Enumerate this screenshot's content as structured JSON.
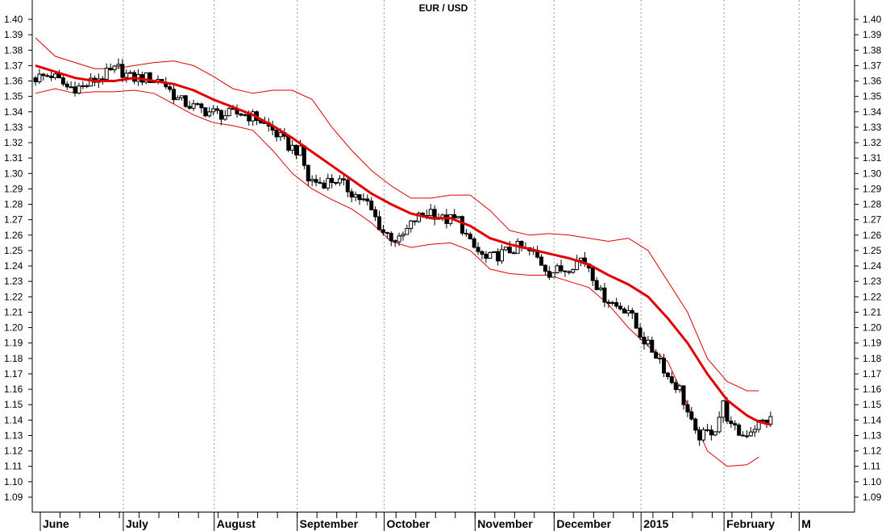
{
  "chart_data": {
    "type": "candlestick",
    "title": "EUR / USD",
    "ylim": [
      1.08,
      1.41
    ],
    "y_ticks": [
      "1.09",
      "1.10",
      "1.11",
      "1.12",
      "1.13",
      "1.14",
      "1.15",
      "1.16",
      "1.17",
      "1.18",
      "1.19",
      "1.20",
      "1.21",
      "1.22",
      "1.23",
      "1.24",
      "1.25",
      "1.26",
      "1.27",
      "1.28",
      "1.29",
      "1.30",
      "1.31",
      "1.32",
      "1.33",
      "1.34",
      "1.35",
      "1.36",
      "1.37",
      "1.38",
      "1.39",
      "1.40"
    ],
    "x_labels": [
      {
        "label": "June",
        "t": 0
      },
      {
        "label": "July",
        "t": 21
      },
      {
        "label": "August",
        "t": 44
      },
      {
        "label": "September",
        "t": 65
      },
      {
        "label": "October",
        "t": 87
      },
      {
        "label": "November",
        "t": 110
      },
      {
        "label": "December",
        "t": 130
      },
      {
        "label": "2015",
        "t": 152
      },
      {
        "label": "February",
        "t": 173
      },
      {
        "label": "M",
        "t": 192
      }
    ],
    "x_range": [
      0,
      195
    ],
    "grid": "vertical dotted at month starts",
    "legend": "none",
    "colors": {
      "moving_average": "#e00000",
      "bands": "#e00000",
      "candle": "#000000",
      "up_body": "#ffffff",
      "down_body": "#000000"
    },
    "series": [
      {
        "type": "candles",
        "close_anchors": [
          [
            0,
            1.362
          ],
          [
            4,
            1.364
          ],
          [
            8,
            1.356
          ],
          [
            12,
            1.356
          ],
          [
            16,
            1.362
          ],
          [
            21,
            1.368
          ],
          [
            24,
            1.362
          ],
          [
            28,
            1.362
          ],
          [
            32,
            1.36
          ],
          [
            36,
            1.348
          ],
          [
            40,
            1.343
          ],
          [
            44,
            1.34
          ],
          [
            48,
            1.338
          ],
          [
            52,
            1.339
          ],
          [
            56,
            1.336
          ],
          [
            60,
            1.328
          ],
          [
            64,
            1.318
          ],
          [
            67,
            1.314
          ],
          [
            69,
            1.296
          ],
          [
            72,
            1.294
          ],
          [
            76,
            1.296
          ],
          [
            80,
            1.288
          ],
          [
            84,
            1.28
          ],
          [
            88,
            1.262
          ],
          [
            92,
            1.256
          ],
          [
            96,
            1.27
          ],
          [
            100,
            1.276
          ],
          [
            103,
            1.27
          ],
          [
            107,
            1.27
          ],
          [
            110,
            1.254
          ],
          [
            114,
            1.244
          ],
          [
            118,
            1.248
          ],
          [
            122,
            1.252
          ],
          [
            126,
            1.248
          ],
          [
            130,
            1.236
          ],
          [
            134,
            1.238
          ],
          [
            138,
            1.245
          ],
          [
            140,
            1.24
          ],
          [
            143,
            1.222
          ],
          [
            147,
            1.214
          ],
          [
            150,
            1.212
          ],
          [
            152,
            1.2
          ],
          [
            155,
            1.188
          ],
          [
            158,
            1.18
          ],
          [
            160,
            1.168
          ],
          [
            163,
            1.16
          ],
          [
            167,
            1.13
          ],
          [
            169,
            1.13
          ],
          [
            172,
            1.135
          ],
          [
            174,
            1.15
          ],
          [
            176,
            1.135
          ],
          [
            179,
            1.13
          ],
          [
            183,
            1.138
          ],
          [
            186,
            1.14
          ]
        ]
      },
      {
        "type": "moving_average",
        "points": [
          [
            0,
            1.37
          ],
          [
            5,
            1.366
          ],
          [
            10,
            1.362
          ],
          [
            15,
            1.36
          ],
          [
            20,
            1.36
          ],
          [
            25,
            1.362
          ],
          [
            30,
            1.36
          ],
          [
            35,
            1.358
          ],
          [
            40,
            1.354
          ],
          [
            45,
            1.348
          ],
          [
            50,
            1.343
          ],
          [
            55,
            1.338
          ],
          [
            60,
            1.331
          ],
          [
            65,
            1.323
          ],
          [
            70,
            1.314
          ],
          [
            75,
            1.305
          ],
          [
            80,
            1.296
          ],
          [
            85,
            1.287
          ],
          [
            90,
            1.28
          ],
          [
            95,
            1.274
          ],
          [
            100,
            1.271
          ],
          [
            105,
            1.271
          ],
          [
            110,
            1.266
          ],
          [
            115,
            1.258
          ],
          [
            120,
            1.254
          ],
          [
            125,
            1.251
          ],
          [
            130,
            1.248
          ],
          [
            135,
            1.245
          ],
          [
            140,
            1.241
          ],
          [
            145,
            1.234
          ],
          [
            150,
            1.228
          ],
          [
            155,
            1.22
          ],
          [
            160,
            1.206
          ],
          [
            165,
            1.19
          ],
          [
            170,
            1.17
          ],
          [
            175,
            1.153
          ],
          [
            180,
            1.143
          ],
          [
            183,
            1.139
          ],
          [
            186,
            1.137
          ]
        ]
      },
      {
        "type": "upper_band",
        "points": [
          [
            0,
            1.388
          ],
          [
            5,
            1.376
          ],
          [
            10,
            1.372
          ],
          [
            15,
            1.368
          ],
          [
            20,
            1.368
          ],
          [
            25,
            1.37
          ],
          [
            30,
            1.372
          ],
          [
            35,
            1.373
          ],
          [
            40,
            1.37
          ],
          [
            45,
            1.363
          ],
          [
            50,
            1.355
          ],
          [
            55,
            1.352
          ],
          [
            60,
            1.354
          ],
          [
            65,
            1.354
          ],
          [
            70,
            1.348
          ],
          [
            75,
            1.33
          ],
          [
            80,
            1.315
          ],
          [
            85,
            1.302
          ],
          [
            90,
            1.292
          ],
          [
            95,
            1.284
          ],
          [
            100,
            1.284
          ],
          [
            105,
            1.286
          ],
          [
            110,
            1.286
          ],
          [
            115,
            1.276
          ],
          [
            120,
            1.263
          ],
          [
            125,
            1.26
          ],
          [
            130,
            1.261
          ],
          [
            135,
            1.26
          ],
          [
            140,
            1.258
          ],
          [
            145,
            1.256
          ],
          [
            150,
            1.258
          ],
          [
            155,
            1.25
          ],
          [
            160,
            1.23
          ],
          [
            165,
            1.21
          ],
          [
            170,
            1.18
          ],
          [
            175,
            1.165
          ],
          [
            180,
            1.159
          ],
          [
            183,
            1.159
          ]
        ]
      },
      {
        "type": "lower_band",
        "points": [
          [
            0,
            1.352
          ],
          [
            5,
            1.355
          ],
          [
            10,
            1.352
          ],
          [
            15,
            1.353
          ],
          [
            20,
            1.353
          ],
          [
            25,
            1.354
          ],
          [
            30,
            1.352
          ],
          [
            35,
            1.345
          ],
          [
            40,
            1.338
          ],
          [
            45,
            1.333
          ],
          [
            50,
            1.331
          ],
          [
            55,
            1.328
          ],
          [
            60,
            1.315
          ],
          [
            65,
            1.3
          ],
          [
            70,
            1.29
          ],
          [
            75,
            1.283
          ],
          [
            80,
            1.277
          ],
          [
            85,
            1.268
          ],
          [
            90,
            1.256
          ],
          [
            95,
            1.252
          ],
          [
            100,
            1.254
          ],
          [
            105,
            1.255
          ],
          [
            110,
            1.25
          ],
          [
            115,
            1.238
          ],
          [
            120,
            1.235
          ],
          [
            125,
            1.234
          ],
          [
            130,
            1.234
          ],
          [
            135,
            1.23
          ],
          [
            140,
            1.226
          ],
          [
            145,
            1.215
          ],
          [
            150,
            1.2
          ],
          [
            155,
            1.188
          ],
          [
            160,
            1.178
          ],
          [
            165,
            1.15
          ],
          [
            170,
            1.12
          ],
          [
            175,
            1.11
          ],
          [
            180,
            1.111
          ],
          [
            183,
            1.116
          ]
        ]
      }
    ]
  }
}
